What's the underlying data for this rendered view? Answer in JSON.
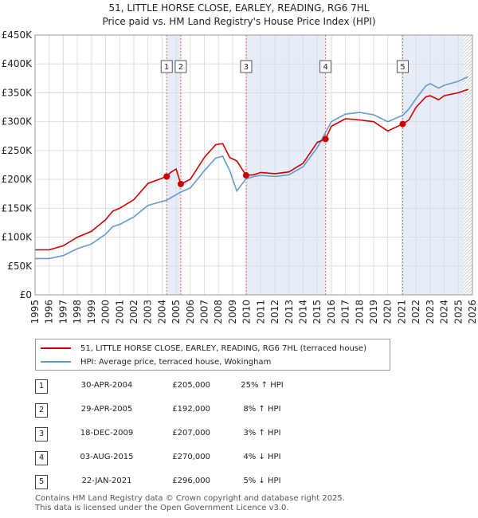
{
  "chart_data": {
    "type": "line",
    "title": "51, LITTLE HORSE CLOSE, EARLEY, READING, RG6 7HL",
    "subtitle": "Price paid vs. HM Land Registry's House Price Index (HPI)",
    "xlim": [
      1995,
      2026
    ],
    "ylim": [
      0,
      450000
    ],
    "x_ticks": [
      "1995",
      "1996",
      "1997",
      "1998",
      "1999",
      "2000",
      "2001",
      "2002",
      "2003",
      "2004",
      "2005",
      "2006",
      "2007",
      "2008",
      "2009",
      "2010",
      "2011",
      "2012",
      "2013",
      "2014",
      "2015",
      "2016",
      "2017",
      "2018",
      "2019",
      "2020",
      "2021",
      "2022",
      "2023",
      "2024",
      "2025",
      "2026"
    ],
    "y_ticks": [
      {
        "value": 0,
        "label": "£0"
      },
      {
        "value": 50000,
        "label": "£50K"
      },
      {
        "value": 100000,
        "label": "£100K"
      },
      {
        "value": 150000,
        "label": "£150K"
      },
      {
        "value": 200000,
        "label": "£200K"
      },
      {
        "value": 250000,
        "label": "£250K"
      },
      {
        "value": 300000,
        "label": "£300K"
      },
      {
        "value": 350000,
        "label": "£350K"
      },
      {
        "value": 400000,
        "label": "£400K"
      },
      {
        "value": 450000,
        "label": "£450K"
      }
    ],
    "series": [
      {
        "name": "51, LITTLE HORSE CLOSE, EARLEY, READING, RG6 7HL (terraced house)",
        "color": "#cc0000",
        "x": [
          1995,
          1996,
          1997,
          1998,
          1999,
          2000,
          2000.5,
          2001,
          2002,
          2003,
          2004.33,
          2004.6,
          2005.0,
          2005.33,
          2006,
          2007,
          2007.8,
          2008.3,
          2008.8,
          2009.3,
          2009.96,
          2010.5,
          2011,
          2012,
          2013,
          2014,
          2015,
          2015.59,
          2016,
          2017,
          2018,
          2019,
          2020,
          2021.06,
          2021.5,
          2022,
          2022.7,
          2023,
          2023.6,
          2024,
          2025,
          2025.7
        ],
        "values": [
          78000,
          78000,
          85000,
          100000,
          110000,
          130000,
          145000,
          150000,
          165000,
          193000,
          205000,
          212000,
          218000,
          192000,
          200000,
          238000,
          260000,
          262000,
          238000,
          232000,
          207000,
          208000,
          212000,
          210000,
          213000,
          228000,
          264000,
          270000,
          292000,
          305000,
          303000,
          300000,
          284000,
          296000,
          303000,
          325000,
          343000,
          345000,
          338000,
          345000,
          350000,
          356000
        ]
      },
      {
        "name": "HPI: Average price, terraced house, Wokingham",
        "color": "#6699cc",
        "x": [
          1995,
          1996,
          1997,
          1998,
          1999,
          2000,
          2000.5,
          2001,
          2002,
          2003,
          2004.33,
          2005.33,
          2006,
          2007,
          2007.8,
          2008.3,
          2008.8,
          2009.3,
          2009.96,
          2010.5,
          2011,
          2012,
          2013,
          2014,
          2015,
          2015.59,
          2016,
          2017,
          2018,
          2019,
          2020,
          2021.06,
          2021.5,
          2022,
          2022.7,
          2023,
          2023.6,
          2024,
          2025,
          2025.7
        ],
        "values": [
          63000,
          63000,
          68000,
          80000,
          88000,
          105000,
          118000,
          122000,
          135000,
          155000,
          164000,
          178000,
          185000,
          215000,
          237000,
          240000,
          215000,
          180000,
          201000,
          205000,
          207000,
          205000,
          208000,
          222000,
          255000,
          281000,
          300000,
          313000,
          316000,
          312000,
          300000,
          311000,
          322000,
          340000,
          362000,
          366000,
          358000,
          363000,
          370000,
          378000
        ]
      }
    ],
    "sales": [
      {
        "label": "1",
        "x": 2004.33,
        "value": 205000
      },
      {
        "label": "2",
        "x": 2005.33,
        "value": 192000
      },
      {
        "label": "3",
        "x": 2009.96,
        "value": 207000
      },
      {
        "label": "4",
        "x": 2015.59,
        "value": 270000
      },
      {
        "label": "5",
        "x": 2021.06,
        "value": 296000
      }
    ],
    "shaded_ranges": [
      [
        2004.33,
        2005.33
      ],
      [
        2009.96,
        2015.59
      ],
      [
        2021.06,
        2025.35
      ]
    ]
  },
  "legend": {
    "property_label": "51, LITTLE HORSE CLOSE, EARLEY, READING, RG6 7HL (terraced house)",
    "hpi_label": "HPI: Average price, terraced house, Wokingham",
    "property_color": "#cc0000",
    "hpi_color": "#6699cc"
  },
  "transactions": [
    {
      "num": "1",
      "date": "30-APR-2004",
      "price": "£205,000",
      "hpi": "25% ↑ HPI"
    },
    {
      "num": "2",
      "date": "29-APR-2005",
      "price": "£192,000",
      "hpi": "8% ↑ HPI"
    },
    {
      "num": "3",
      "date": "18-DEC-2009",
      "price": "£207,000",
      "hpi": "3% ↑ HPI"
    },
    {
      "num": "4",
      "date": "03-AUG-2015",
      "price": "£270,000",
      "hpi": "4% ↓ HPI"
    },
    {
      "num": "5",
      "date": "22-JAN-2021",
      "price": "£296,000",
      "hpi": "5% ↓ HPI"
    }
  ],
  "footer": {
    "line1": "Contains HM Land Registry data © Crown copyright and database right 2025.",
    "line2": "This data is licensed under the Open Government Licence v3.0."
  }
}
